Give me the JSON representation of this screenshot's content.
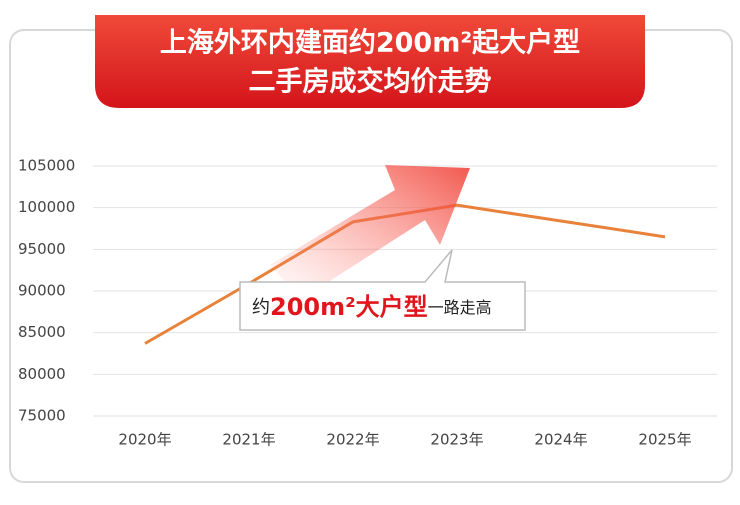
{
  "chart_data": {
    "type": "line",
    "title": [
      "上海外环内建面约200m²起大户型",
      "二手房成交均价走势"
    ],
    "annotation": [
      "约",
      "200m²大户型",
      "一路走高"
    ],
    "categories": [
      "2020年",
      "2021年",
      "2022年",
      "2023年",
      "2024年",
      "2025年"
    ],
    "values": [
      83700,
      90900,
      98300,
      100300,
      98400,
      96500
    ],
    "color": "#e8823a",
    "ylim": [
      75000,
      105000
    ],
    "yticks": [
      75000,
      80000,
      85000,
      90000,
      95000,
      100000,
      105000
    ],
    "grid": true
  }
}
